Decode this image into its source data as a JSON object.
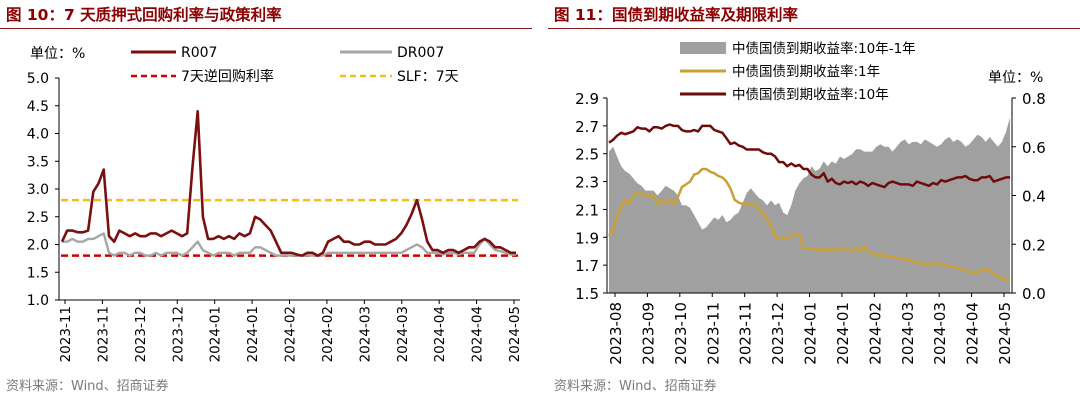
{
  "colors": {
    "accent_red": "#8B0000",
    "r007": "#7B1010",
    "dr007": "#A6A6A6",
    "reverse_repo": "#D40000",
    "slf": "#F4BC18",
    "spread_fill": "#A0A0A0",
    "yield_1y": "#C9A033",
    "yield_10y": "#6E0C0C"
  },
  "panels": [
    {
      "title": "图 10：7 天质押式回购利率与政策利率",
      "source": "资料来源：Wind、招商证券",
      "unit_label": "单位：%"
    },
    {
      "title": "图 11：国债到期收益率及期限利率",
      "source": "资料来源：Wind、招商证券",
      "unit_label": "单位：%"
    }
  ],
  "chart_data": [
    {
      "type": "line",
      "ylim": [
        1.0,
        5.0
      ],
      "yticks": [
        "1.0",
        "1.5",
        "2.0",
        "2.5",
        "3.0",
        "3.5",
        "4.0",
        "4.5",
        "5.0"
      ],
      "grid": false,
      "legend_position": "top",
      "x_tick_labels": [
        "2023-11",
        "2023-11",
        "2023-12",
        "2023-12",
        "2024-01",
        "2024-01",
        "2024-02",
        "2024-02",
        "2024-03",
        "2024-03",
        "2024-04",
        "2024-04",
        "2024-05"
      ],
      "series": [
        {
          "name": "R007",
          "values": [
            2.05,
            2.25,
            2.25,
            2.22,
            2.22,
            2.25,
            2.95,
            3.1,
            3.35,
            2.15,
            2.05,
            2.25,
            2.2,
            2.15,
            2.2,
            2.15,
            2.15,
            2.2,
            2.2,
            2.15,
            2.2,
            2.25,
            2.2,
            2.15,
            2.2,
            3.4,
            4.4,
            2.5,
            2.1,
            2.1,
            2.15,
            2.1,
            2.15,
            2.1,
            2.2,
            2.15,
            2.2,
            2.5,
            2.45,
            2.35,
            2.25,
            2.05,
            1.85,
            1.85,
            1.85,
            1.82,
            1.8,
            1.85,
            1.85,
            1.8,
            1.85,
            2.05,
            2.1,
            2.15,
            2.05,
            2.05,
            2.0,
            2.0,
            2.05,
            2.05,
            2.0,
            2.0,
            2.0,
            2.05,
            2.1,
            2.2,
            2.35,
            2.55,
            2.8,
            2.45,
            2.05,
            1.9,
            1.9,
            1.85,
            1.9,
            1.9,
            1.85,
            1.9,
            1.95,
            1.95,
            2.05,
            2.1,
            2.05,
            1.95,
            1.95,
            1.9,
            1.85,
            1.85
          ]
        },
        {
          "name": "DR007",
          "values": [
            2.05,
            2.05,
            2.1,
            2.05,
            2.05,
            2.1,
            2.1,
            2.15,
            2.2,
            1.85,
            1.8,
            1.85,
            1.85,
            1.8,
            1.85,
            1.85,
            1.8,
            1.8,
            1.85,
            1.8,
            1.85,
            1.85,
            1.85,
            1.8,
            1.85,
            1.95,
            2.05,
            1.9,
            1.85,
            1.8,
            1.85,
            1.85,
            1.85,
            1.8,
            1.85,
            1.85,
            1.85,
            1.95,
            1.95,
            1.9,
            1.85,
            1.8,
            1.8,
            1.8,
            1.8,
            1.8,
            1.8,
            1.8,
            1.8,
            1.8,
            1.8,
            1.85,
            1.85,
            1.85,
            1.85,
            1.85,
            1.85,
            1.85,
            1.85,
            1.85,
            1.85,
            1.85,
            1.85,
            1.85,
            1.85,
            1.85,
            1.9,
            1.95,
            2.0,
            1.95,
            1.85,
            1.85,
            1.85,
            1.82,
            1.85,
            1.85,
            1.82,
            1.85,
            1.85,
            1.85,
            2.0,
            2.1,
            2.0,
            1.9,
            1.88,
            1.85,
            1.82,
            1.82
          ]
        },
        {
          "name": "7天逆回购利率",
          "constant": 1.8,
          "style": "dashed"
        },
        {
          "name": "SLF：7天",
          "constant": 2.8,
          "style": "dashed"
        }
      ]
    },
    {
      "type": "line",
      "ylim_left": [
        1.5,
        2.9
      ],
      "yticks_left": [
        "1.5",
        "1.7",
        "1.9",
        "2.1",
        "2.3",
        "2.5",
        "2.7",
        "2.9"
      ],
      "ylim_right": [
        0.0,
        0.8
      ],
      "yticks_right": [
        "0.0",
        "0.2",
        "0.4",
        "0.6",
        "0.8"
      ],
      "grid": false,
      "legend_position": "top",
      "x_tick_labels": [
        "2023-08",
        "2023-09",
        "2023-10",
        "2023-11",
        "2023-11",
        "2023-12",
        "2024-01",
        "2024-01",
        "2024-02",
        "2024-03",
        "2024-03",
        "2024-04",
        "2024-05"
      ],
      "series": [
        {
          "name": "中债国债到期收益率:10年-1年",
          "axis": "right",
          "type": "area",
          "values": [
            0.58,
            0.6,
            0.56,
            0.52,
            0.5,
            0.49,
            0.47,
            0.45,
            0.44,
            0.42,
            0.42,
            0.42,
            0.4,
            0.42,
            0.44,
            0.43,
            0.42,
            0.4,
            0.36,
            0.36,
            0.35,
            0.32,
            0.29,
            0.26,
            0.27,
            0.29,
            0.31,
            0.3,
            0.32,
            0.29,
            0.3,
            0.32,
            0.33,
            0.37,
            0.41,
            0.43,
            0.41,
            0.39,
            0.38,
            0.36,
            0.38,
            0.36,
            0.37,
            0.33,
            0.32,
            0.36,
            0.42,
            0.45,
            0.47,
            0.48,
            0.52,
            0.5,
            0.51,
            0.54,
            0.52,
            0.54,
            0.53,
            0.56,
            0.55,
            0.56,
            0.57,
            0.59,
            0.59,
            0.58,
            0.58,
            0.58,
            0.6,
            0.61,
            0.6,
            0.6,
            0.58,
            0.6,
            0.62,
            0.63,
            0.61,
            0.62,
            0.62,
            0.61,
            0.63,
            0.62,
            0.61,
            0.6,
            0.61,
            0.63,
            0.64,
            0.62,
            0.63,
            0.62,
            0.6,
            0.61,
            0.63,
            0.65,
            0.64,
            0.62,
            0.64,
            0.62,
            0.6,
            0.62,
            0.66,
            0.72
          ]
        },
        {
          "name": "中债国债到期收益率:1年",
          "axis": "left",
          "values": [
            1.91,
            1.95,
            2.05,
            2.12,
            2.17,
            2.14,
            2.2,
            2.22,
            2.22,
            2.19,
            2.2,
            2.2,
            2.14,
            2.17,
            2.14,
            2.17,
            2.14,
            2.19,
            2.26,
            2.28,
            2.3,
            2.35,
            2.36,
            2.39,
            2.39,
            2.37,
            2.36,
            2.34,
            2.33,
            2.3,
            2.25,
            2.17,
            2.15,
            2.14,
            2.14,
            2.14,
            2.14,
            2.1,
            2.07,
            2.03,
            1.98,
            1.91,
            1.89,
            1.89,
            1.89,
            1.92,
            1.92,
            1.92,
            1.82,
            1.82,
            1.82,
            1.81,
            1.81,
            1.81,
            1.81,
            1.81,
            1.81,
            1.81,
            1.82,
            1.81,
            1.8,
            1.82,
            1.8,
            1.84,
            1.79,
            1.79,
            1.77,
            1.77,
            1.77,
            1.76,
            1.76,
            1.75,
            1.75,
            1.74,
            1.74,
            1.73,
            1.72,
            1.71,
            1.71,
            1.7,
            1.72,
            1.71,
            1.7,
            1.7,
            1.69,
            1.69,
            1.68,
            1.67,
            1.66,
            1.65,
            1.65,
            1.65,
            1.66,
            1.67,
            1.66,
            1.64,
            1.62,
            1.6,
            1.6,
            1.6
          ]
        },
        {
          "name": "中债国债到期收益率:10年",
          "axis": "left",
          "values": [
            2.58,
            2.6,
            2.63,
            2.65,
            2.64,
            2.65,
            2.66,
            2.69,
            2.68,
            2.68,
            2.66,
            2.69,
            2.69,
            2.68,
            2.7,
            2.71,
            2.7,
            2.7,
            2.67,
            2.66,
            2.66,
            2.67,
            2.66,
            2.7,
            2.7,
            2.7,
            2.67,
            2.66,
            2.65,
            2.61,
            2.57,
            2.58,
            2.56,
            2.55,
            2.53,
            2.53,
            2.53,
            2.53,
            2.51,
            2.5,
            2.5,
            2.48,
            2.44,
            2.44,
            2.41,
            2.43,
            2.41,
            2.42,
            2.39,
            2.39,
            2.35,
            2.33,
            2.33,
            2.36,
            2.3,
            2.32,
            2.29,
            2.28,
            2.3,
            2.29,
            2.3,
            2.28,
            2.3,
            2.29,
            2.27,
            2.29,
            2.28,
            2.27,
            2.26,
            2.29,
            2.3,
            2.29,
            2.28,
            2.28,
            2.28,
            2.27,
            2.3,
            2.29,
            2.28,
            2.27,
            2.29,
            2.28,
            2.31,
            2.3,
            2.31,
            2.32,
            2.33,
            2.33,
            2.34,
            2.32,
            2.31,
            2.31,
            2.33,
            2.33,
            2.34,
            2.3,
            2.31,
            2.32,
            2.33,
            2.33
          ]
        }
      ]
    }
  ]
}
